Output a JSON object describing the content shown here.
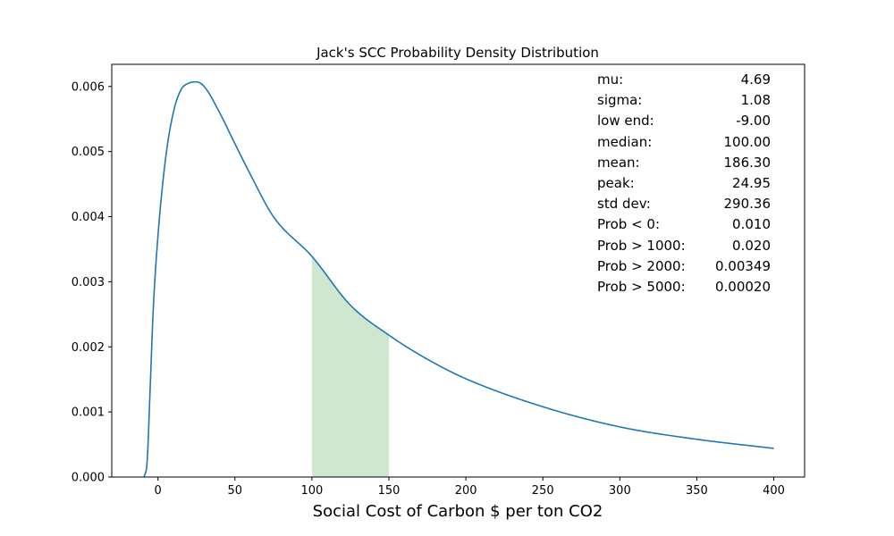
{
  "chart_data": {
    "type": "line",
    "title": "Jack's SCC Probability Density Distribution",
    "xlabel": "Social Cost of Carbon $ per ton CO2",
    "ylabel": "",
    "xlim": [
      -30,
      420
    ],
    "ylim": [
      0,
      0.00634
    ],
    "x_ticks": [
      0,
      50,
      100,
      150,
      200,
      250,
      300,
      350,
      400
    ],
    "x_tick_labels": [
      "0",
      "50",
      "100",
      "150",
      "200",
      "250",
      "300",
      "350",
      "400"
    ],
    "y_ticks": [
      0,
      0.001,
      0.002,
      0.003,
      0.004,
      0.005,
      0.006
    ],
    "y_tick_labels": [
      "0.000",
      "0.001",
      "0.002",
      "0.003",
      "0.004",
      "0.005",
      "0.006"
    ],
    "grid": false,
    "line_color": "#1f77b4",
    "fill_color": "#cfe6cf",
    "series": [
      {
        "x": [
          -9,
          -7,
          -5,
          -3,
          0,
          5,
          10,
          15,
          20,
          24.95,
          30,
          40,
          50,
          60,
          75,
          100,
          125,
          150,
          175,
          200,
          250,
          300,
          350,
          400
        ],
        "y": [
          0,
          0.00024,
          0.0014,
          0.0026,
          0.0037,
          0.0049,
          0.0056,
          0.00595,
          0.00605,
          0.00607,
          0.006,
          0.0056,
          0.00512,
          0.00465,
          0.004,
          0.00339,
          0.00264,
          0.00218,
          0.00181,
          0.00151,
          0.00108,
          0.00077,
          0.00058,
          0.00044
        ]
      }
    ],
    "shaded_region": {
      "x_start": 100,
      "x_end": 150
    },
    "stats": [
      {
        "label": "mu:",
        "value": "4.69"
      },
      {
        "label": "sigma:",
        "value": "1.08"
      },
      {
        "label": "low end:",
        "value": "-9.00"
      },
      {
        "label": "median:",
        "value": "100.00"
      },
      {
        "label": "mean:",
        "value": "186.30"
      },
      {
        "label": "peak:",
        "value": "24.95"
      },
      {
        "label": "std dev:",
        "value": "290.36"
      },
      {
        "label": "Prob < 0:",
        "value": "0.010"
      },
      {
        "label": "Prob > 1000:",
        "value": "0.020"
      },
      {
        "label": "Prob > 2000:",
        "value": "0.00349"
      },
      {
        "label": "Prob > 5000:",
        "value": "0.00020"
      }
    ]
  }
}
